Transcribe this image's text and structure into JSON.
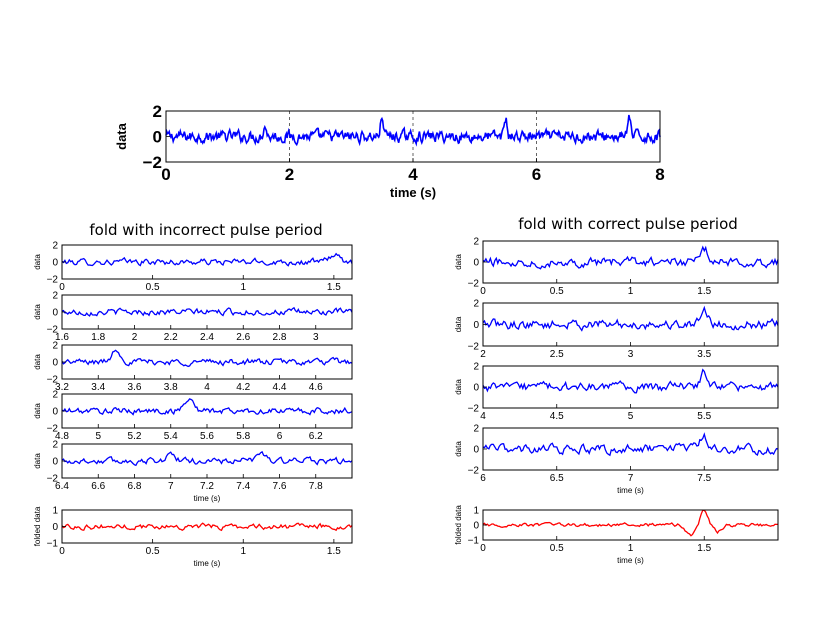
{
  "figure": {
    "left_title": "fold with incorrect pulse period",
    "right_title": "fold with correct pulse period"
  },
  "chart_data": [
    {
      "id": "full",
      "type": "line",
      "xlabel": "time (s)",
      "ylabel": "data",
      "xlim": [
        0,
        8
      ],
      "ylim": [
        -2,
        2
      ],
      "xticks": [
        "0",
        "2",
        "4",
        "6",
        "8"
      ],
      "yticks": [
        "2",
        "0",
        "−2"
      ],
      "grid": "vertical dashed",
      "series": [
        {
          "color": "#0000ff",
          "period": 2.0,
          "pulse_phase": 1.5,
          "pulse_height": 1.3,
          "noise": 0.35,
          "pulses_at": [
            1.6,
            3.5,
            5.5,
            7.5
          ],
          "pulse_heights": [
            0.9,
            1.6,
            1.4,
            1.4
          ]
        }
      ]
    },
    {
      "id": "left-1",
      "type": "line",
      "xlabel": "",
      "ylabel": "data",
      "xlim": [
        0,
        1.6
      ],
      "ylim": [
        -2,
        2
      ],
      "xticks": [
        "0",
        "0.5",
        "1",
        "1.5"
      ],
      "yticks": [
        "2",
        "0",
        "−2"
      ],
      "series": [
        {
          "color": "#0000ff",
          "pulses_at": [
            1.5
          ],
          "pulse_heights": [
            0.9
          ],
          "noise": 0.3
        }
      ]
    },
    {
      "id": "left-2",
      "type": "line",
      "xlabel": "",
      "ylabel": "data",
      "xlim": [
        1.6,
        3.2
      ],
      "ylim": [
        -2,
        2
      ],
      "xticks": [
        "1.6",
        "1.8",
        "2",
        "2.2",
        "2.4",
        "2.6",
        "2.8",
        "3"
      ],
      "yticks": [
        "2",
        "0",
        "−2"
      ],
      "series": [
        {
          "color": "#0000ff",
          "pulses_at": [],
          "pulse_heights": [],
          "noise": 0.3
        }
      ]
    },
    {
      "id": "left-3",
      "type": "line",
      "xlabel": "",
      "ylabel": "data",
      "xlim": [
        3.2,
        4.8
      ],
      "ylim": [
        -2,
        2
      ],
      "xticks": [
        "3.2",
        "3.4",
        "3.6",
        "3.8",
        "4",
        "4.2",
        "4.4",
        "4.6"
      ],
      "yticks": [
        "2",
        "0",
        "−2"
      ],
      "series": [
        {
          "color": "#0000ff",
          "pulses_at": [
            3.5
          ],
          "pulse_heights": [
            1.5
          ],
          "noise": 0.3
        }
      ]
    },
    {
      "id": "left-4",
      "type": "line",
      "xlabel": "",
      "ylabel": "data",
      "xlim": [
        4.8,
        6.4
      ],
      "ylim": [
        -2,
        2
      ],
      "xticks": [
        "4.8",
        "5",
        "5.2",
        "5.4",
        "5.6",
        "5.8",
        "6",
        "6.2"
      ],
      "yticks": [
        "2",
        "0",
        "−2"
      ],
      "series": [
        {
          "color": "#0000ff",
          "pulses_at": [
            5.5
          ],
          "pulse_heights": [
            1.5
          ],
          "noise": 0.3
        }
      ]
    },
    {
      "id": "left-5",
      "type": "line",
      "xlabel": "time (s)",
      "ylabel": "data",
      "xlim": [
        6.4,
        8.0
      ],
      "ylim": [
        -2,
        2
      ],
      "xticks": [
        "6.4",
        "6.6",
        "6.8",
        "7",
        "7.2",
        "7.4",
        "7.6",
        "7.8"
      ],
      "yticks": [
        "2",
        "0",
        "−2"
      ],
      "series": [
        {
          "color": "#0000ff",
          "pulses_at": [
            7.0,
            7.5
          ],
          "pulse_heights": [
            0.8,
            1.0
          ],
          "noise": 0.3
        }
      ]
    },
    {
      "id": "left-fold",
      "type": "line",
      "xlabel": "time (s)",
      "ylabel": "folded data",
      "xlim": [
        0,
        1.6
      ],
      "ylim": [
        -1,
        1
      ],
      "xticks": [
        "0",
        "0.5",
        "1",
        "1.5"
      ],
      "yticks": [
        "1",
        "0",
        "−1"
      ],
      "hlines": [
        1,
        -1
      ],
      "series": [
        {
          "color": "#ff0000",
          "pulses_at": [],
          "pulse_heights": [],
          "noise": 0.13
        }
      ]
    },
    {
      "id": "right-1",
      "type": "line",
      "xlabel": "",
      "ylabel": "data",
      "xlim": [
        0,
        2
      ],
      "ylim": [
        -2,
        2
      ],
      "xticks": [
        "0",
        "0.5",
        "1",
        "1.5"
      ],
      "yticks": [
        "2",
        "0",
        "−2"
      ],
      "series": [
        {
          "color": "#0000ff",
          "pulses_at": [
            1.5
          ],
          "pulse_heights": [
            1.2
          ],
          "noise": 0.35
        }
      ]
    },
    {
      "id": "right-2",
      "type": "line",
      "xlabel": "",
      "ylabel": "data",
      "xlim": [
        2,
        4
      ],
      "ylim": [
        -2,
        2
      ],
      "xticks": [
        "2",
        "2.5",
        "3",
        "3.5"
      ],
      "yticks": [
        "2",
        "0",
        "−2"
      ],
      "series": [
        {
          "color": "#0000ff",
          "pulses_at": [
            3.5
          ],
          "pulse_heights": [
            1.6
          ],
          "noise": 0.35
        }
      ]
    },
    {
      "id": "right-3",
      "type": "line",
      "xlabel": "",
      "ylabel": "data",
      "xlim": [
        4,
        6
      ],
      "ylim": [
        -2,
        2
      ],
      "xticks": [
        "4",
        "4.5",
        "5",
        "5.5"
      ],
      "yticks": [
        "2",
        "0",
        "−2"
      ],
      "series": [
        {
          "color": "#0000ff",
          "pulses_at": [
            5.5
          ],
          "pulse_heights": [
            1.5
          ],
          "noise": 0.35
        }
      ]
    },
    {
      "id": "right-4",
      "type": "line",
      "xlabel": "time (s)",
      "ylabel": "data",
      "xlim": [
        6,
        8
      ],
      "ylim": [
        -2,
        2
      ],
      "xticks": [
        "6",
        "6.5",
        "7",
        "7.5"
      ],
      "yticks": [
        "2",
        "0",
        "−2"
      ],
      "series": [
        {
          "color": "#0000ff",
          "pulses_at": [
            7.5
          ],
          "pulse_heights": [
            1.2
          ],
          "noise": 0.35
        }
      ]
    },
    {
      "id": "right-fold",
      "type": "line",
      "xlabel": "time (s)",
      "ylabel": "folded data",
      "xlim": [
        0,
        2
      ],
      "ylim": [
        -1,
        1
      ],
      "xticks": [
        "0",
        "0.5",
        "1",
        "1.5"
      ],
      "yticks": [
        "1",
        "0",
        "−1"
      ],
      "hlines": [
        1,
        -1
      ],
      "series": [
        {
          "color": "#ff0000",
          "pulses_at": [
            1.5
          ],
          "pulse_heights": [
            1.0
          ],
          "dip": true,
          "noise": 0.1
        }
      ]
    }
  ]
}
